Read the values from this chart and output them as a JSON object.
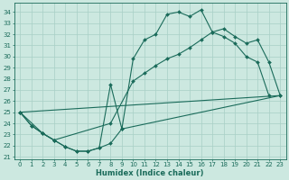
{
  "xlabel": "Humidex (Indice chaleur)",
  "xlim": [
    -0.5,
    23.5
  ],
  "ylim": [
    20.8,
    34.8
  ],
  "xticks": [
    0,
    1,
    2,
    3,
    4,
    5,
    6,
    7,
    8,
    9,
    10,
    11,
    12,
    13,
    14,
    15,
    16,
    17,
    18,
    19,
    20,
    21,
    22,
    23
  ],
  "yticks": [
    21,
    22,
    23,
    24,
    25,
    26,
    27,
    28,
    29,
    30,
    31,
    32,
    33,
    34
  ],
  "bg_color": "#cce8e0",
  "line_color": "#1a6b5a",
  "grid_color": "#a8cfc6",
  "curves": [
    {
      "x": [
        0,
        1,
        2,
        3,
        4,
        5,
        6,
        7,
        8,
        9,
        10,
        11,
        12,
        13,
        14,
        15,
        16,
        17,
        18,
        19,
        20,
        21,
        22
      ],
      "y": [
        25.0,
        23.8,
        23.1,
        22.5,
        21.9,
        21.5,
        21.5,
        21.8,
        27.5,
        23.5,
        29.8,
        31.5,
        32.0,
        33.8,
        34.0,
        33.6,
        34.2,
        32.2,
        31.8,
        31.2,
        30.0,
        29.5,
        26.5
      ],
      "has_markers": true
    },
    {
      "x": [
        0,
        2,
        3,
        8,
        10,
        11,
        12,
        13,
        14,
        15,
        16,
        17,
        18,
        19,
        20,
        21,
        22,
        23
      ],
      "y": [
        25.0,
        23.1,
        22.5,
        24.0,
        27.8,
        28.5,
        29.2,
        29.8,
        30.2,
        30.8,
        31.5,
        32.2,
        32.5,
        31.8,
        31.2,
        31.5,
        29.5,
        26.5
      ],
      "has_markers": true
    },
    {
      "x": [
        0,
        23
      ],
      "y": [
        25.0,
        26.5
      ],
      "has_markers": false
    },
    {
      "x": [
        0,
        1,
        2,
        3,
        4,
        5,
        6,
        7,
        8,
        9,
        23
      ],
      "y": [
        25.0,
        23.8,
        23.1,
        22.5,
        21.9,
        21.5,
        21.5,
        21.8,
        22.2,
        23.5,
        26.5
      ],
      "has_markers": true
    }
  ]
}
